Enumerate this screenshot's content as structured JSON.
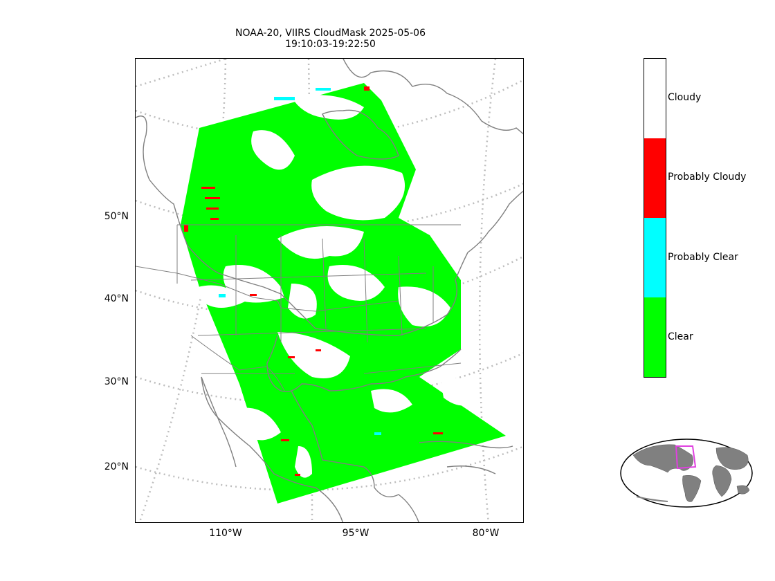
{
  "title": {
    "line1": "NOAA-20, VIIRS CloudMask 2025-05-06",
    "line2": "19:10:03-19:22:50"
  },
  "axes": {
    "lat_labels": [
      "50°N",
      "40°N",
      "30°N",
      "20°N"
    ],
    "lon_labels": [
      "110°W",
      "95°W",
      "80°W"
    ]
  },
  "colorbar": {
    "classes": [
      {
        "label": "Cloudy",
        "color": "#ffffff"
      },
      {
        "label": "Probably Cloudy",
        "color": "#ff0000"
      },
      {
        "label": "Probably Clear",
        "color": "#00ffff"
      },
      {
        "label": "Clear",
        "color": "#00ff00"
      }
    ]
  },
  "colors": {
    "clear": "#00ff00",
    "cloudy": "#ffffff",
    "probably_cloudy": "#ff0000",
    "probably_clear": "#00ffff",
    "coast": "#7f7f7f",
    "graticule": "#bdbdbd",
    "land_inset": "#808080",
    "inset_box": "#e040e0"
  }
}
